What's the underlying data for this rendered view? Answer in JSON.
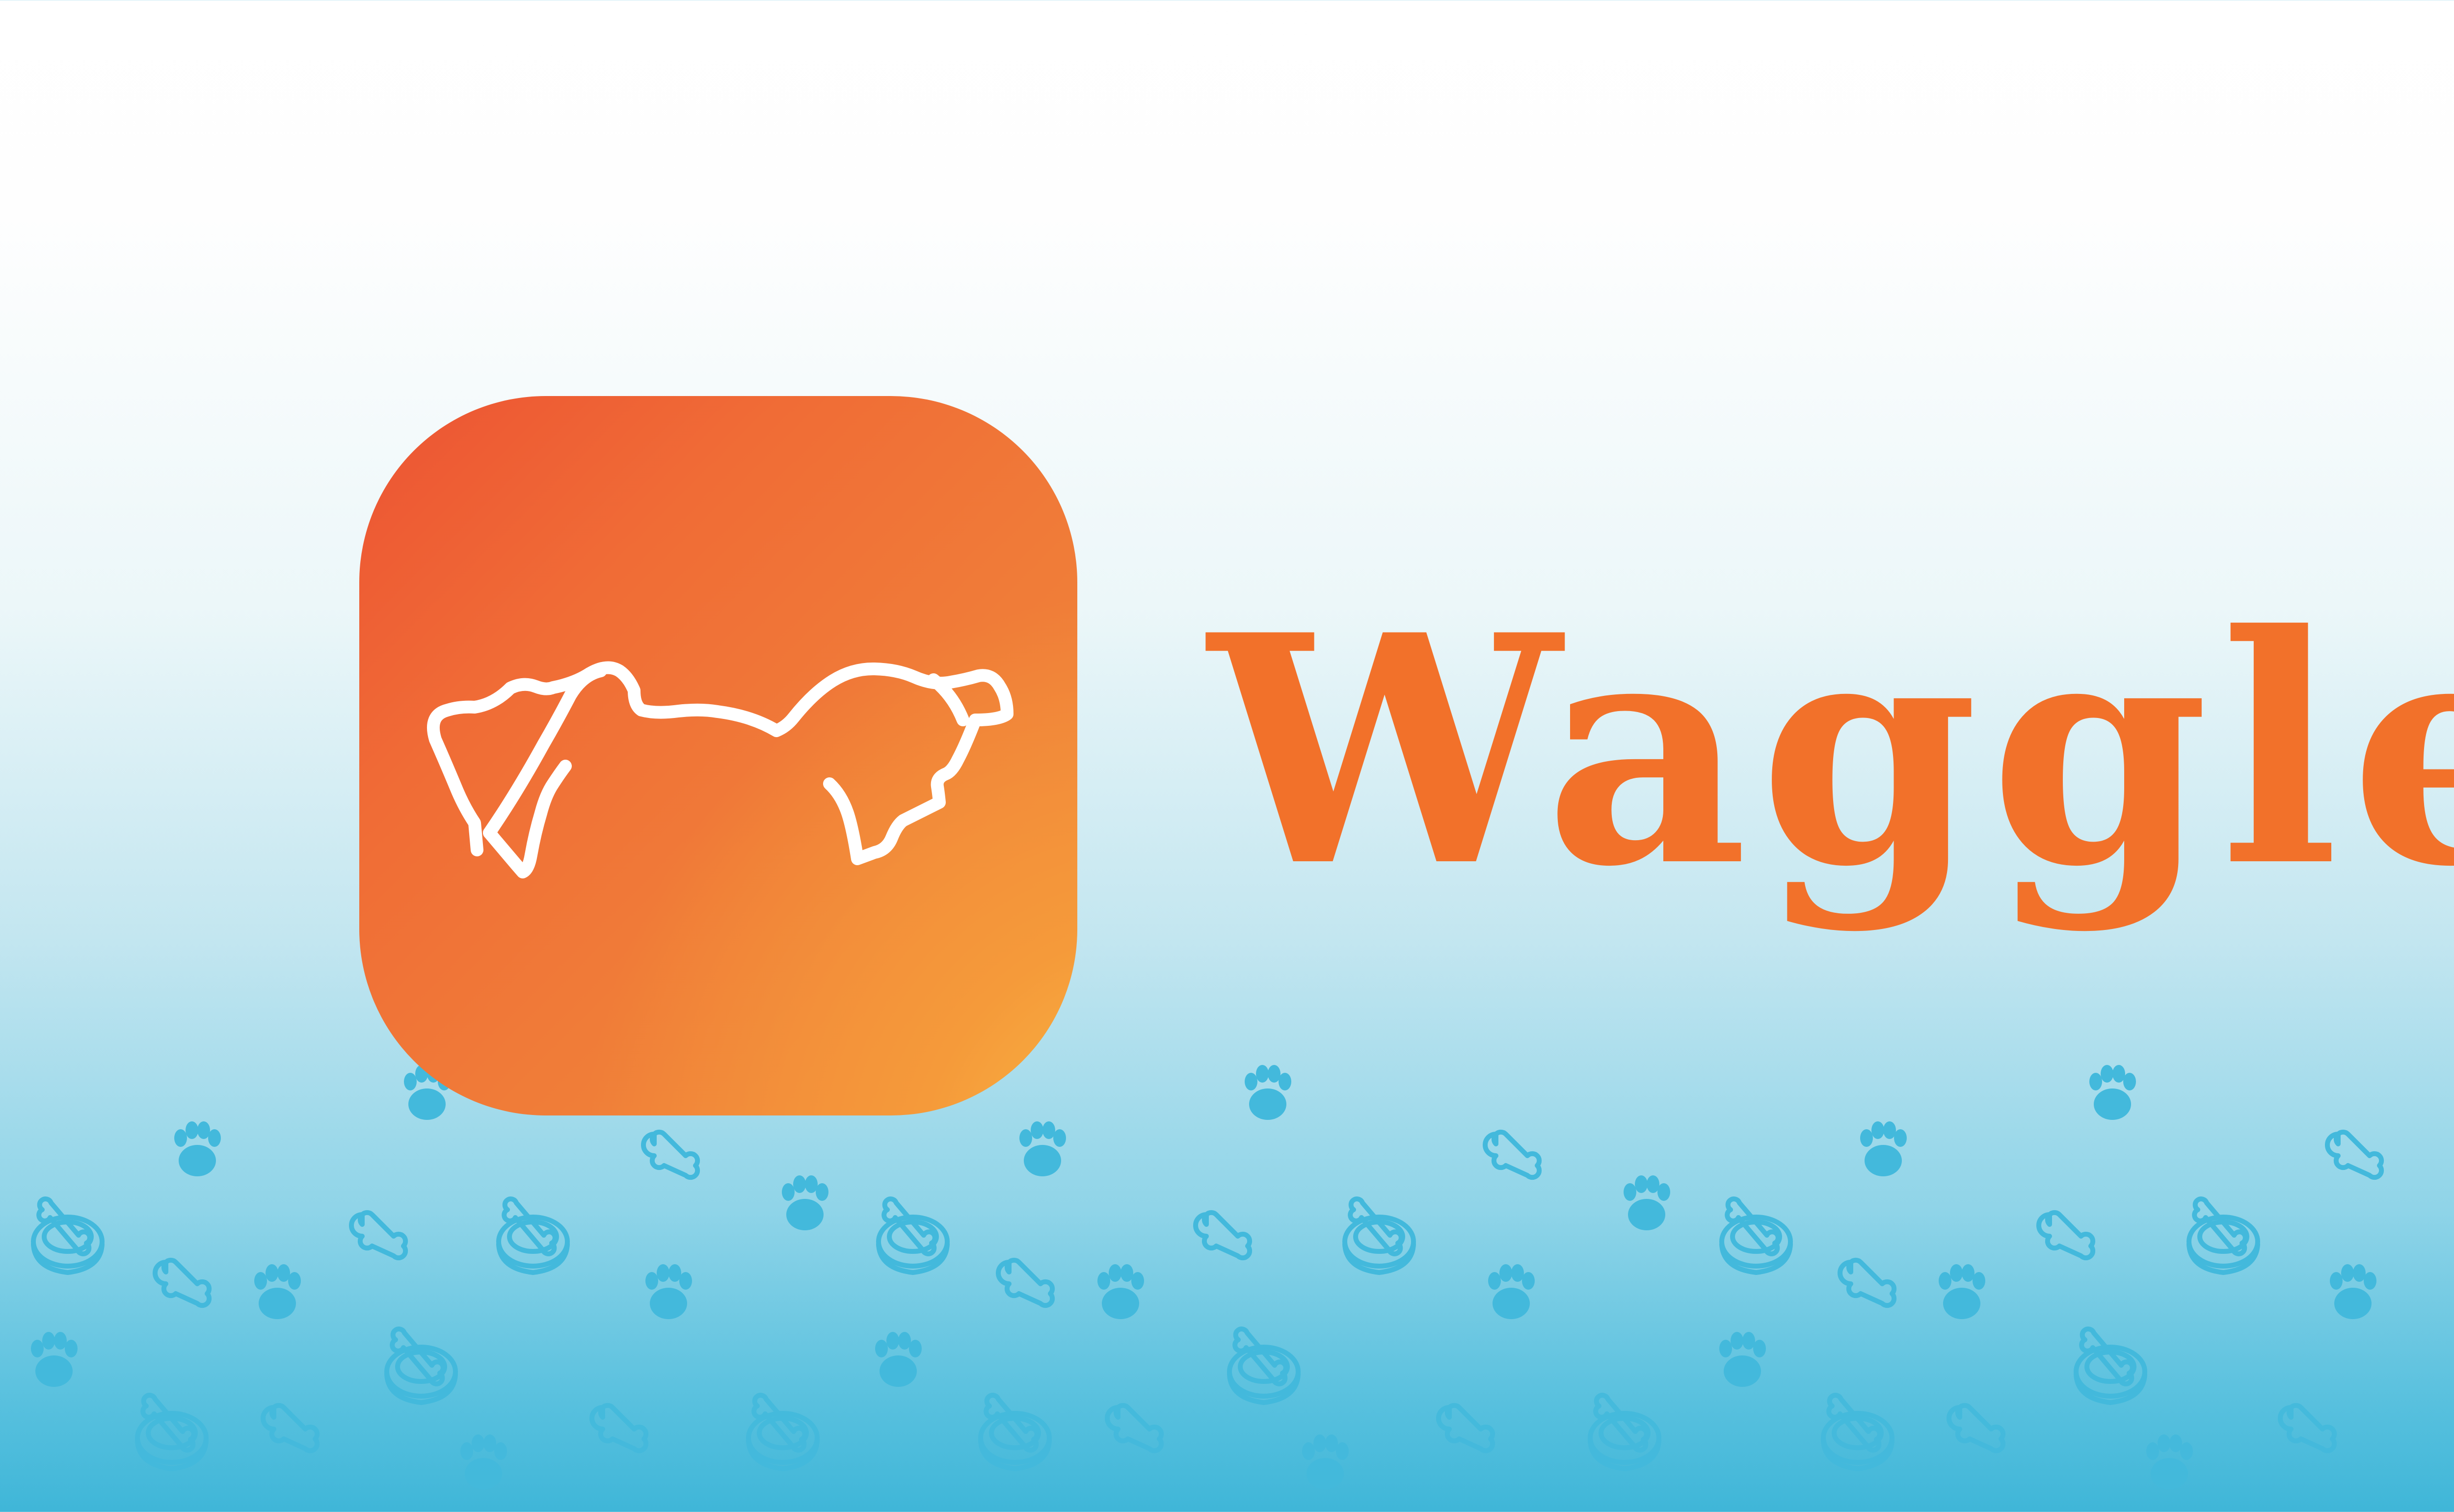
{
  "brand": {
    "name": "Waggle",
    "icon": "dog-outline-icon",
    "wordmark_color": "#f2712a",
    "icon_gradient": [
      "#ec5333",
      "#f07c38",
      "#f9bc43"
    ]
  },
  "background": {
    "gradient": [
      "#ffffff",
      "#ecf7f9",
      "#8fd4e8",
      "#3fb6d8"
    ],
    "pattern_icons": [
      "paw-print-icon",
      "dog-bone-icon",
      "food-bowl-icon"
    ],
    "pattern_color": "#43b9dc"
  }
}
